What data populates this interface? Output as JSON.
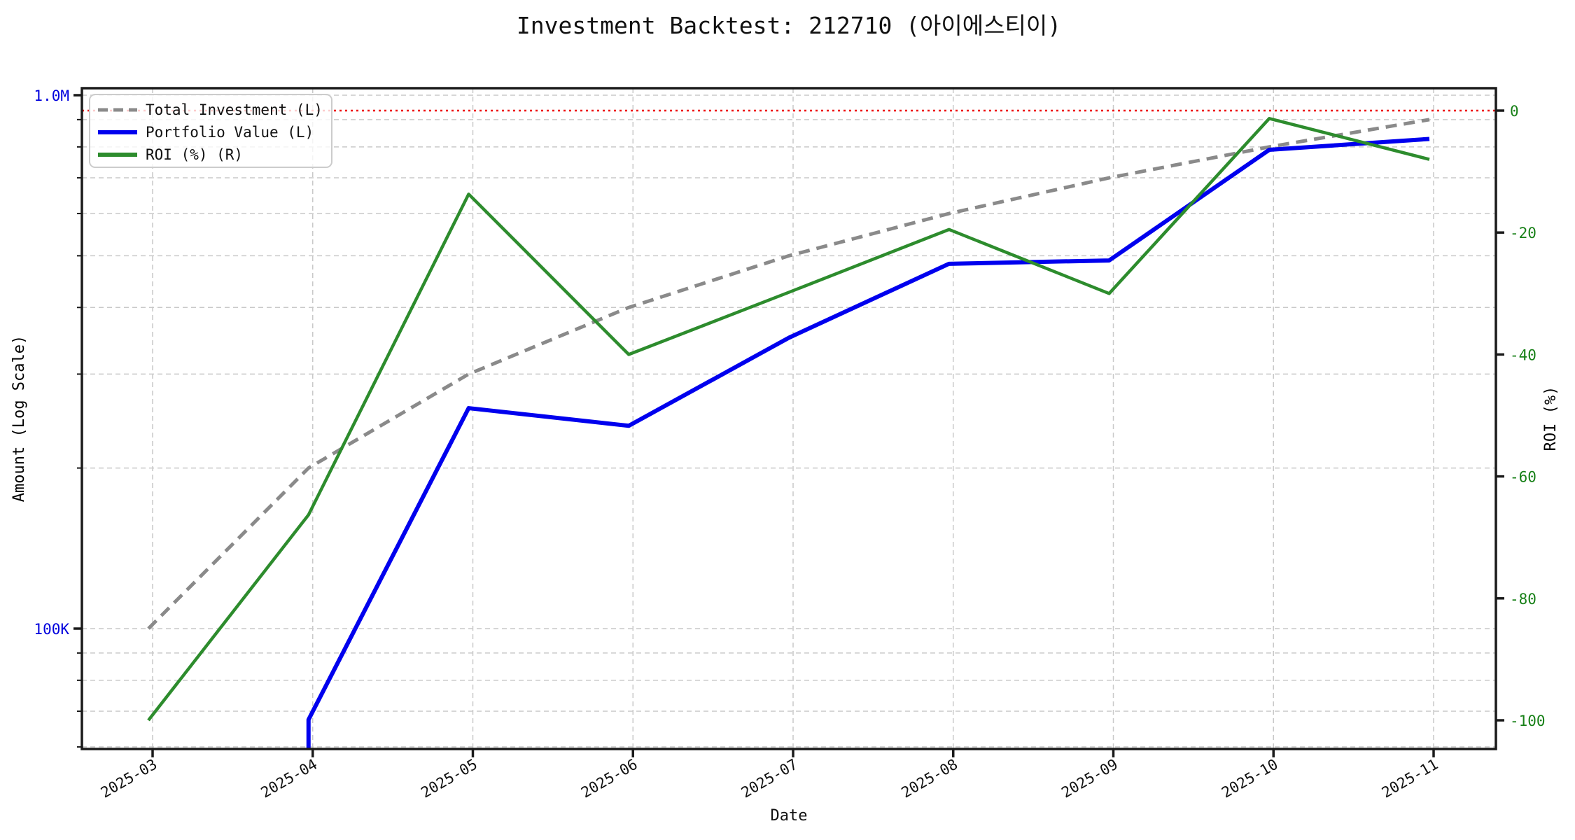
{
  "title": "Investment Backtest: 212710 (아이에스티이)",
  "axes": {
    "x": {
      "label": "Date",
      "tick_labels": [
        "2025-03",
        "2025-04",
        "2025-05",
        "2025-06",
        "2025-07",
        "2025-08",
        "2025-09",
        "2025-10",
        "2025-11"
      ],
      "tick_rotation_deg": 30
    },
    "y_left": {
      "label": "Amount (Log Scale)",
      "scale": "log",
      "color": "#0000DD",
      "major_ticks": [
        {
          "value": 1000000,
          "label": "1.0M"
        },
        {
          "value": 100000,
          "label": "100K"
        }
      ],
      "minor_tick_values": [
        900000,
        800000,
        700000,
        600000,
        500000,
        400000,
        300000,
        200000,
        90000,
        80000,
        70000,
        60000
      ],
      "range_approx": [
        59000,
        1020000
      ]
    },
    "y_right": {
      "label": "ROI (%)",
      "color": "#178017",
      "tick_values": [
        0,
        -20,
        -40,
        -60,
        -80,
        -100
      ],
      "range_approx": [
        -104.7,
        3.7
      ]
    }
  },
  "reference_line": {
    "axis": "right",
    "value": 0,
    "color": "#EE0000",
    "style": "dotted"
  },
  "legend": {
    "items": [
      {
        "label": "Total Investment (L)",
        "color": "#8A8A8A",
        "dash": "dashed"
      },
      {
        "label": "Portfolio Value (L)",
        "color": "#0000EE",
        "dash": "solid"
      },
      {
        "label": "ROI (%) (R)",
        "color": "#2D8C2D",
        "dash": "solid"
      }
    ]
  },
  "chart_data": {
    "type": "line",
    "title": "Investment Backtest: 212710 (아이에스티이)",
    "xlabel": "Date",
    "x_categories": [
      "2025-03",
      "2025-04",
      "2025-05",
      "2025-06",
      "2025-07",
      "2025-08",
      "2025-09",
      "2025-10",
      "2025-11"
    ],
    "grid": true,
    "legend_position": "upper-left",
    "series": [
      {
        "name": "Total Investment (L)",
        "axis": "left_log",
        "color": "#8A8A8A",
        "style": "dashed",
        "values": [
          100000,
          200000,
          300000,
          400000,
          500000,
          600000,
          700000,
          800000,
          900000
        ]
      },
      {
        "name": "Portfolio Value (L)",
        "axis": "left_log",
        "color": "#0000EE",
        "style": "solid",
        "values": [
          0,
          67500,
          259000,
          240000,
          351000,
          483000,
          490000,
          790000,
          828000
        ]
      },
      {
        "name": "ROI (%) (R)",
        "axis": "right",
        "color": "#2D8C2D",
        "style": "solid",
        "values": [
          -100,
          -66.3,
          -13.7,
          -40.0,
          -29.8,
          -19.5,
          -30.0,
          -1.3,
          -8.0
        ]
      }
    ],
    "left_axis_ticks": [
      "1.0M",
      "100K"
    ],
    "right_axis_ticks": [
      0,
      -20,
      -40,
      -60,
      -80,
      -100
    ],
    "roi_zero_reference_line": true
  }
}
